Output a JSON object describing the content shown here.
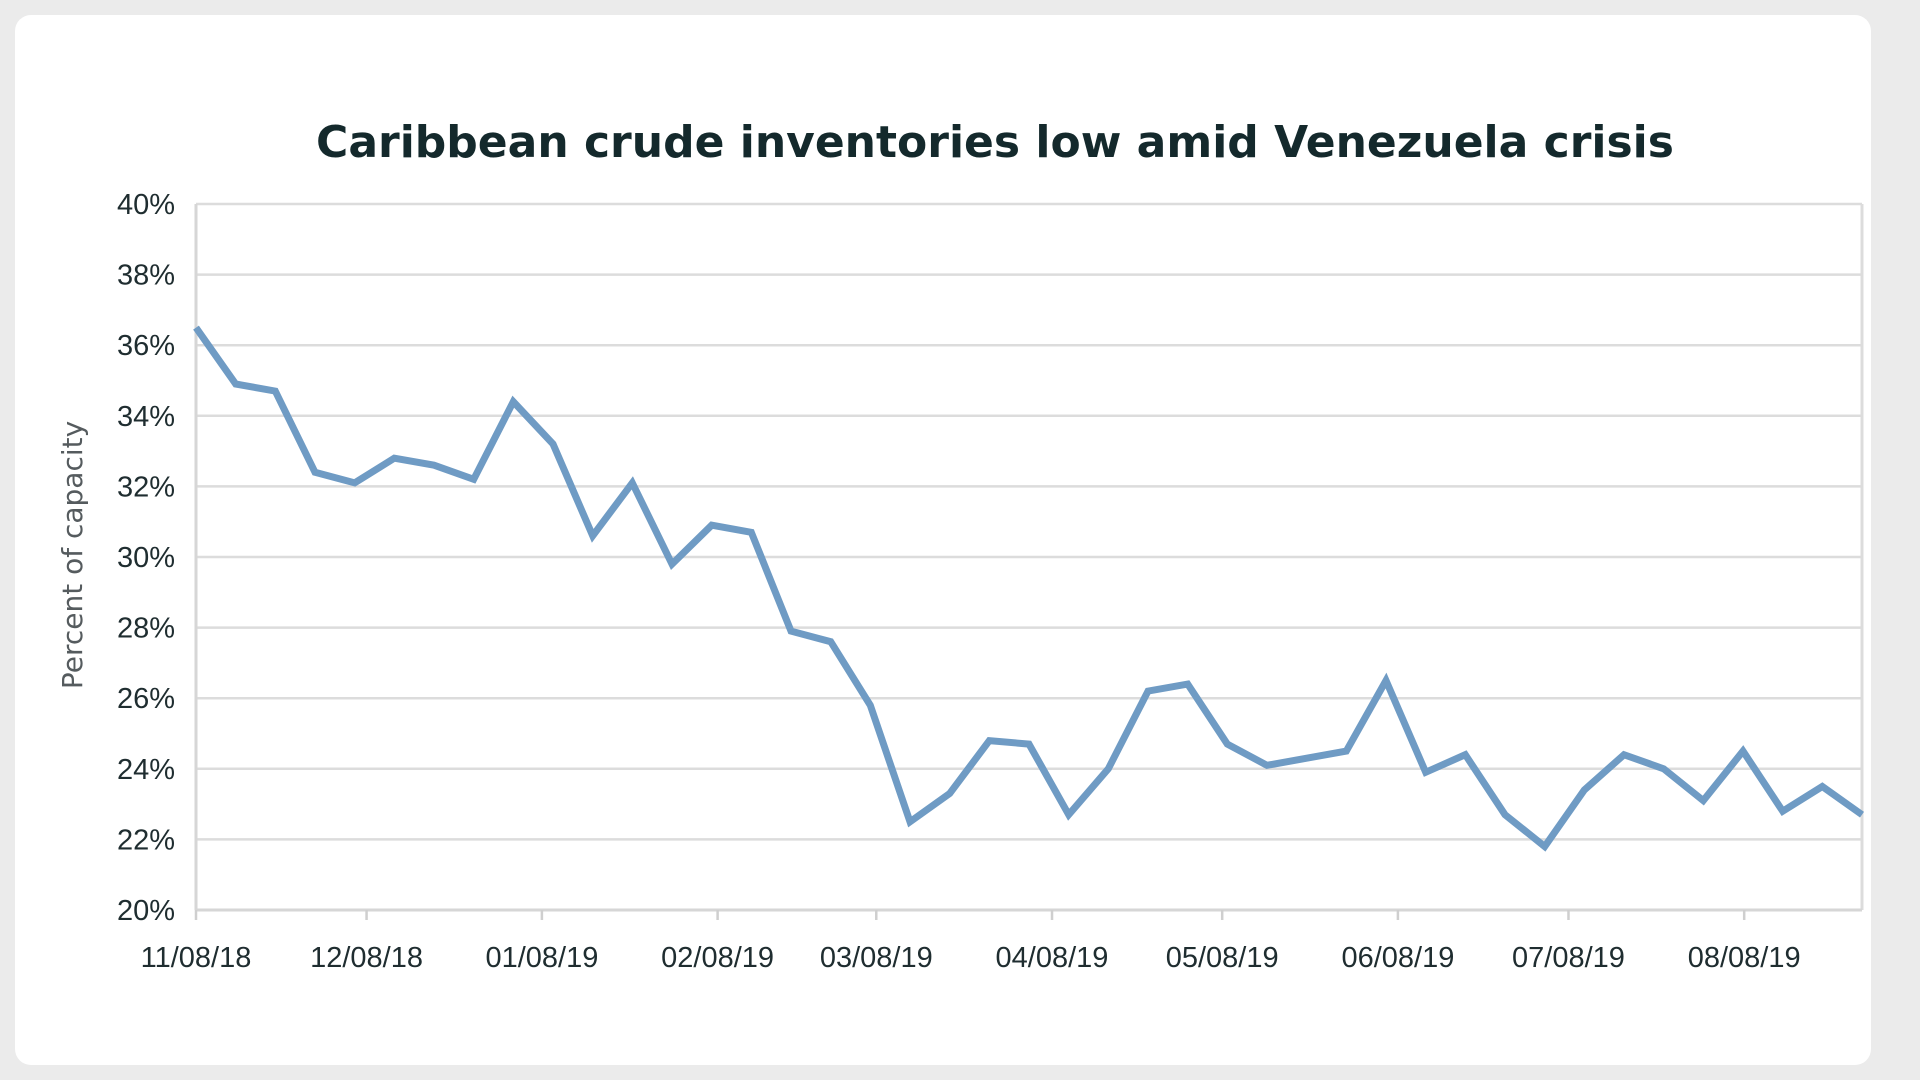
{
  "chart_data": {
    "type": "line",
    "title": "Caribbean crude inventories low amid Venezuela crisis",
    "xlabel": "",
    "ylabel": "Percent of capacity",
    "ylim": [
      20,
      40
    ],
    "y_step": 2,
    "y_tick_suffix": "%",
    "grid": true,
    "x_ticks": [
      "11/08/18",
      "12/08/18",
      "01/08/19",
      "02/08/19",
      "03/08/19",
      "04/08/19",
      "05/08/19",
      "06/08/19",
      "07/08/19",
      "08/08/19"
    ],
    "x_tick_index": [
      0,
      4.3,
      8.72,
      13.15,
      17.15,
      21.58,
      25.87,
      30.3,
      34.6,
      39.03
    ],
    "x_range": [
      0,
      42
    ],
    "series": [
      {
        "name": "Percent of capacity",
        "color": "#6f9bc4",
        "values": [
          36.5,
          34.9,
          34.7,
          32.4,
          32.1,
          32.8,
          32.6,
          32.2,
          34.4,
          33.2,
          30.6,
          32.1,
          29.8,
          30.9,
          30.7,
          27.9,
          27.6,
          25.8,
          22.5,
          23.3,
          24.8,
          24.7,
          22.7,
          24.0,
          26.2,
          26.4,
          24.7,
          24.1,
          24.3,
          24.5,
          26.5,
          23.9,
          24.4,
          22.7,
          21.8,
          23.4,
          24.4,
          24.0,
          23.1,
          24.5,
          22.8,
          23.5,
          22.7
        ]
      }
    ]
  }
}
